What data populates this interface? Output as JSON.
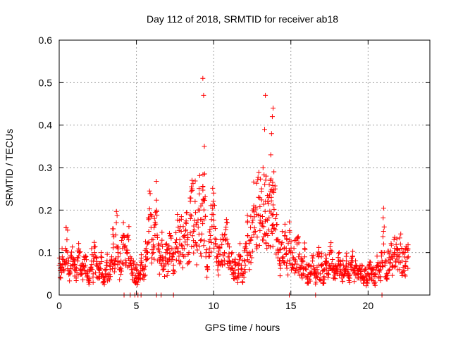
{
  "chart_data": {
    "type": "scatter",
    "title": "Day 112 of 2018, SRMTID for receiver ab18",
    "xlabel": "GPS time / hours",
    "ylabel": "SRMTID / TECUs",
    "xlim": [
      0,
      24
    ],
    "ylim": [
      0,
      0.6
    ],
    "xticks": [
      0,
      5,
      10,
      15,
      20
    ],
    "yticks": [
      0,
      0.1,
      0.2,
      0.3,
      0.4,
      0.5,
      0.6
    ],
    "xtick_labels": [
      "0",
      "5",
      "10",
      "15",
      "20"
    ],
    "ytick_labels": [
      "0",
      "0.1",
      "0.2",
      "0.3",
      "0.4",
      "0.5",
      "0.6"
    ],
    "grid": true,
    "marker": "+",
    "color": "#ff0000",
    "series": [
      {
        "name": "SRMTID",
        "sampled_points": [
          [
            0.0,
            0.07
          ],
          [
            0.1,
            0.04
          ],
          [
            0.2,
            0.09
          ],
          [
            0.3,
            0.06
          ],
          [
            0.4,
            0.11
          ],
          [
            0.5,
            0.13
          ],
          [
            0.6,
            0.08
          ],
          [
            0.7,
            0.05
          ],
          [
            0.8,
            0.09
          ],
          [
            0.9,
            0.07
          ],
          [
            1.0,
            0.06
          ],
          [
            1.1,
            0.04
          ],
          [
            1.2,
            0.08
          ],
          [
            1.3,
            0.1
          ],
          [
            1.4,
            0.06
          ],
          [
            1.5,
            0.05
          ],
          [
            1.6,
            0.09
          ],
          [
            1.7,
            0.07
          ],
          [
            1.8,
            0.05
          ],
          [
            1.9,
            0.03
          ],
          [
            2.0,
            0.06
          ],
          [
            2.1,
            0.08
          ],
          [
            2.2,
            0.05
          ],
          [
            2.3,
            0.1
          ],
          [
            2.4,
            0.07
          ],
          [
            2.5,
            0.04
          ],
          [
            2.6,
            0.06
          ],
          [
            2.7,
            0.09
          ],
          [
            2.8,
            0.05
          ],
          [
            2.9,
            0.03
          ],
          [
            3.0,
            0.05
          ],
          [
            3.1,
            0.07
          ],
          [
            3.2,
            0.04
          ],
          [
            3.3,
            0.06
          ],
          [
            3.4,
            0.09
          ],
          [
            3.5,
            0.12
          ],
          [
            3.6,
            0.08
          ],
          [
            3.7,
            0.17
          ],
          [
            3.8,
            0.1
          ],
          [
            3.9,
            0.06
          ],
          [
            4.0,
            0.08
          ],
          [
            4.1,
            0.11
          ],
          [
            4.2,
            0.14
          ],
          [
            4.3,
            0.07
          ],
          [
            4.4,
            0.1
          ],
          [
            4.5,
            0.13
          ],
          [
            4.6,
            0.09
          ],
          [
            4.7,
            0.05
          ],
          [
            4.8,
            0.08
          ],
          [
            4.9,
            0.04
          ],
          [
            5.0,
            0.06
          ],
          [
            5.1,
            0.03
          ],
          [
            5.2,
            0.05
          ],
          [
            5.3,
            0.08
          ],
          [
            5.4,
            0.04
          ],
          [
            5.5,
            0.06
          ],
          [
            5.6,
            0.09
          ],
          [
            5.7,
            0.12
          ],
          [
            5.8,
            0.15
          ],
          [
            5.9,
            0.19
          ],
          [
            6.0,
            0.13
          ],
          [
            6.1,
            0.1
          ],
          [
            6.2,
            0.14
          ],
          [
            6.3,
            0.2
          ],
          [
            6.4,
            0.11
          ],
          [
            6.5,
            0.08
          ],
          [
            6.6,
            0.12
          ],
          [
            6.7,
            0.09
          ],
          [
            6.8,
            0.07
          ],
          [
            6.9,
            0.1
          ],
          [
            7.0,
            0.08
          ],
          [
            7.1,
            0.11
          ],
          [
            7.2,
            0.14
          ],
          [
            7.3,
            0.09
          ],
          [
            7.4,
            0.07
          ],
          [
            7.5,
            0.1
          ],
          [
            7.6,
            0.13
          ],
          [
            7.7,
            0.16
          ],
          [
            7.8,
            0.12
          ],
          [
            7.9,
            0.15
          ],
          [
            8.0,
            0.11
          ],
          [
            8.1,
            0.14
          ],
          [
            8.2,
            0.17
          ],
          [
            8.3,
            0.13
          ],
          [
            8.4,
            0.1
          ],
          [
            8.5,
            0.18
          ],
          [
            8.6,
            0.27
          ],
          [
            8.7,
            0.15
          ],
          [
            8.8,
            0.22
          ],
          [
            8.9,
            0.12
          ],
          [
            9.0,
            0.16
          ],
          [
            9.1,
            0.2
          ],
          [
            9.2,
            0.13
          ],
          [
            9.3,
            0.51
          ],
          [
            9.35,
            0.47
          ],
          [
            9.4,
            0.35
          ],
          [
            9.5,
            0.09
          ],
          [
            9.6,
            0.06
          ],
          [
            9.7,
            0.1
          ],
          [
            9.8,
            0.14
          ],
          [
            9.9,
            0.19
          ],
          [
            10.0,
            0.24
          ],
          [
            10.1,
            0.12
          ],
          [
            10.2,
            0.09
          ],
          [
            10.3,
            0.07
          ],
          [
            10.4,
            0.11
          ],
          [
            10.5,
            0.08
          ],
          [
            10.6,
            0.13
          ],
          [
            10.7,
            0.1
          ],
          [
            10.8,
            0.16
          ],
          [
            10.9,
            0.12
          ],
          [
            11.0,
            0.09
          ],
          [
            11.1,
            0.06
          ],
          [
            11.2,
            0.08
          ],
          [
            11.3,
            0.05
          ],
          [
            11.4,
            0.07
          ],
          [
            11.5,
            0.04
          ],
          [
            11.6,
            0.06
          ],
          [
            11.7,
            0.09
          ],
          [
            11.8,
            0.07
          ],
          [
            11.9,
            0.05
          ],
          [
            12.0,
            0.08
          ],
          [
            12.1,
            0.11
          ],
          [
            12.2,
            0.14
          ],
          [
            12.3,
            0.1
          ],
          [
            12.4,
            0.13
          ],
          [
            12.5,
            0.17
          ],
          [
            12.6,
            0.21
          ],
          [
            12.7,
            0.15
          ],
          [
            12.8,
            0.19
          ],
          [
            12.9,
            0.23
          ],
          [
            13.0,
            0.17
          ],
          [
            13.1,
            0.25
          ],
          [
            13.2,
            0.3
          ],
          [
            13.3,
            0.39
          ],
          [
            13.35,
            0.47
          ],
          [
            13.4,
            0.28
          ],
          [
            13.5,
            0.22
          ],
          [
            13.6,
            0.26
          ],
          [
            13.7,
            0.33
          ],
          [
            13.75,
            0.38
          ],
          [
            13.8,
            0.42
          ],
          [
            13.85,
            0.44
          ],
          [
            13.9,
            0.29
          ],
          [
            14.0,
            0.18
          ],
          [
            14.1,
            0.13
          ],
          [
            14.2,
            0.1
          ],
          [
            14.3,
            0.08
          ],
          [
            14.4,
            0.12
          ],
          [
            14.5,
            0.09
          ],
          [
            14.6,
            0.14
          ],
          [
            14.7,
            0.11
          ],
          [
            14.8,
            0.08
          ],
          [
            14.9,
            0.13
          ],
          [
            15.0,
            0.1
          ],
          [
            15.1,
            0.07
          ],
          [
            15.2,
            0.11
          ],
          [
            15.3,
            0.08
          ],
          [
            15.4,
            0.12
          ],
          [
            15.5,
            0.09
          ],
          [
            15.6,
            0.06
          ],
          [
            15.7,
            0.08
          ],
          [
            15.8,
            0.05
          ],
          [
            15.9,
            0.09
          ],
          [
            16.0,
            0.06
          ],
          [
            16.1,
            0.04
          ],
          [
            16.2,
            0.07
          ],
          [
            16.3,
            0.05
          ],
          [
            16.4,
            0.08
          ],
          [
            16.5,
            0.06
          ],
          [
            16.6,
            0.04
          ],
          [
            16.7,
            0.06
          ],
          [
            16.8,
            0.09
          ],
          [
            16.9,
            0.05
          ],
          [
            17.0,
            0.07
          ],
          [
            17.1,
            0.04
          ],
          [
            17.2,
            0.06
          ],
          [
            17.3,
            0.08
          ],
          [
            17.4,
            0.05
          ],
          [
            17.5,
            0.07
          ],
          [
            17.6,
            0.1
          ],
          [
            17.7,
            0.06
          ],
          [
            17.8,
            0.04
          ],
          [
            17.9,
            0.07
          ],
          [
            18.0,
            0.05
          ],
          [
            18.1,
            0.08
          ],
          [
            18.2,
            0.06
          ],
          [
            18.3,
            0.04
          ],
          [
            18.4,
            0.07
          ],
          [
            18.5,
            0.05
          ],
          [
            18.6,
            0.08
          ],
          [
            18.7,
            0.06
          ],
          [
            18.8,
            0.04
          ],
          [
            18.9,
            0.06
          ],
          [
            19.0,
            0.08
          ],
          [
            19.1,
            0.05
          ],
          [
            19.2,
            0.07
          ],
          [
            19.3,
            0.04
          ],
          [
            19.4,
            0.06
          ],
          [
            19.5,
            0.05
          ],
          [
            19.6,
            0.07
          ],
          [
            19.7,
            0.04
          ],
          [
            19.8,
            0.06
          ],
          [
            19.9,
            0.03
          ],
          [
            20.0,
            0.05
          ],
          [
            20.1,
            0.07
          ],
          [
            20.2,
            0.04
          ],
          [
            20.3,
            0.06
          ],
          [
            20.4,
            0.03
          ],
          [
            20.5,
            0.05
          ],
          [
            20.6,
            0.07
          ],
          [
            20.7,
            0.04
          ],
          [
            20.8,
            0.06
          ],
          [
            20.9,
            0.08
          ],
          [
            21.0,
            0.15
          ],
          [
            21.1,
            0.07
          ],
          [
            21.2,
            0.05
          ],
          [
            21.3,
            0.08
          ],
          [
            21.4,
            0.06
          ],
          [
            21.5,
            0.09
          ],
          [
            21.6,
            0.07
          ],
          [
            21.7,
            0.1
          ],
          [
            21.8,
            0.08
          ],
          [
            21.9,
            0.11
          ],
          [
            22.0,
            0.09
          ],
          [
            22.1,
            0.12
          ],
          [
            22.2,
            0.08
          ],
          [
            22.3,
            0.1
          ],
          [
            22.4,
            0.07
          ],
          [
            22.5,
            0.11
          ],
          [
            22.6,
            0.09
          ]
        ],
        "zero_points": [
          4.2,
          4.6,
          4.9,
          5.1,
          5.3,
          6.3,
          6.6,
          7.4,
          14.9,
          16.6,
          20.9
        ]
      }
    ]
  }
}
